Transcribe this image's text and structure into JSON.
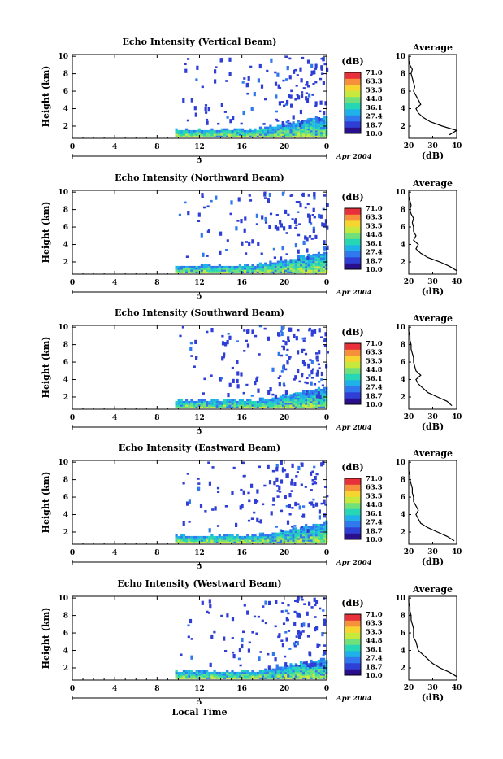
{
  "figure": {
    "xlabel_bottom": "Local Time"
  },
  "shared": {
    "height_label": "Height (km)",
    "height_ticks": [
      "2",
      "4",
      "6",
      "8",
      "10"
    ],
    "time_ticks": [
      "0",
      "4",
      "8",
      "12",
      "16",
      "20",
      "0"
    ],
    "day_marker": "5",
    "date_label": "Apr 2004",
    "colorbar_unit": "(dB)",
    "colorbar_ticks": [
      "71.0",
      "63.3",
      "53.5",
      "44.8",
      "36.1",
      "27.4",
      "18.7",
      "10.0"
    ],
    "avg_title": "Average",
    "avg_xlabel": "(dB)",
    "avg_xticks": [
      "20",
      "30",
      "40"
    ]
  },
  "colors": {
    "colormap": [
      "#2a0f8c",
      "#2f3fd6",
      "#2f78ee",
      "#1fb2e8",
      "#26d6b4",
      "#6fe07a",
      "#c7e83c",
      "#f7d531",
      "#f7903a",
      "#e8303a"
    ],
    "profile_line": "#000000"
  },
  "chart_data": [
    {
      "type": "heatmap",
      "title": "Echo Intensity (Vertical Beam)",
      "xlabel": "",
      "ylabel": "Height (km)",
      "x_range_hours": [
        0,
        24
      ],
      "y_range_km": [
        0.6,
        10.2
      ],
      "clim_db": [
        10.0,
        71.0
      ],
      "avg_profile": {
        "title": "Average",
        "xlabel": "(dB)",
        "xlim": [
          20,
          40
        ],
        "height_km": [
          1.0,
          1.5,
          2.0,
          2.5,
          3.0,
          3.5,
          4.0,
          4.5,
          5.0,
          5.5,
          6.0,
          6.5,
          7.0,
          7.5,
          8.0,
          8.5,
          9.0,
          9.5,
          10.0
        ],
        "db": [
          37,
          40,
          34,
          29,
          26,
          24,
          23,
          25,
          24,
          23,
          22,
          22.5,
          22,
          21.5,
          21,
          21.5,
          20.5,
          20,
          20
        ]
      }
    },
    {
      "type": "heatmap",
      "title": "Echo Intensity (Northward Beam)",
      "xlabel": "",
      "ylabel": "Height (km)",
      "x_range_hours": [
        0,
        24
      ],
      "y_range_km": [
        0.6,
        10.2
      ],
      "clim_db": [
        10.0,
        71.0
      ],
      "avg_profile": {
        "title": "Average",
        "xlabel": "(dB)",
        "xlim": [
          20,
          40
        ],
        "height_km": [
          1.0,
          1.5,
          2.0,
          2.5,
          3.0,
          3.5,
          4.0,
          4.5,
          5.0,
          5.5,
          6.0,
          6.5,
          7.0,
          7.5,
          8.0,
          8.5,
          9.0,
          9.5,
          10.0
        ],
        "db": [
          40,
          37,
          33,
          28,
          25,
          23,
          24,
          22,
          23,
          22,
          22,
          21.5,
          22,
          21,
          20.5,
          21,
          20.5,
          20,
          20
        ]
      }
    },
    {
      "type": "heatmap",
      "title": "Echo Intensity (Southward Beam)",
      "xlabel": "",
      "ylabel": "Height (km)",
      "x_range_hours": [
        0,
        24
      ],
      "y_range_km": [
        0.6,
        10.2
      ],
      "clim_db": [
        10.0,
        71.0
      ],
      "avg_profile": {
        "title": "Average",
        "xlabel": "(dB)",
        "xlim": [
          20,
          40
        ],
        "height_km": [
          1.0,
          1.5,
          2.0,
          2.5,
          3.0,
          3.5,
          4.0,
          4.5,
          5.0,
          5.5,
          6.0,
          6.5,
          7.0,
          7.5,
          8.0,
          8.5,
          9.0,
          9.5,
          10.0
        ],
        "db": [
          38,
          36,
          32,
          28,
          26,
          24,
          23,
          25,
          23,
          22.5,
          22,
          22,
          21.5,
          21,
          21,
          20.5,
          20.5,
          20,
          20
        ]
      }
    },
    {
      "type": "heatmap",
      "title": "Echo Intensity (Eastward Beam)",
      "xlabel": "",
      "ylabel": "Height (km)",
      "x_range_hours": [
        0,
        24
      ],
      "y_range_km": [
        0.6,
        10.2
      ],
      "clim_db": [
        10.0,
        71.0
      ],
      "avg_profile": {
        "title": "Average",
        "xlabel": "(dB)",
        "xlim": [
          20,
          40
        ],
        "height_km": [
          1.0,
          1.5,
          2.0,
          2.5,
          3.0,
          3.5,
          4.0,
          4.5,
          5.0,
          5.5,
          6.0,
          6.5,
          7.0,
          7.5,
          8.0,
          8.5,
          9.0,
          9.5,
          10.0
        ],
        "db": [
          39,
          36,
          32,
          28,
          25,
          24,
          23,
          24,
          23,
          22,
          22,
          21.5,
          21.5,
          21,
          20.5,
          20.5,
          20,
          20,
          20
        ]
      }
    },
    {
      "type": "heatmap",
      "title": "Echo Intensity (Westward Beam)",
      "xlabel": "Local Time",
      "ylabel": "Height (km)",
      "x_range_hours": [
        0,
        24
      ],
      "y_range_km": [
        0.6,
        10.2
      ],
      "clim_db": [
        10.0,
        71.0
      ],
      "avg_profile": {
        "title": "Average",
        "xlabel": "(dB)",
        "xlim": [
          20,
          40
        ],
        "height_km": [
          1.0,
          1.5,
          2.0,
          2.5,
          3.0,
          3.5,
          4.0,
          4.5,
          5.0,
          5.5,
          6.0,
          6.5,
          7.0,
          7.5,
          8.0,
          8.5,
          9.0,
          9.5,
          10.0
        ],
        "db": [
          40,
          37,
          33,
          30,
          28,
          26,
          24,
          23.5,
          23,
          22,
          22,
          22,
          21.5,
          21,
          21,
          20.5,
          20.5,
          20,
          20
        ]
      }
    }
  ]
}
